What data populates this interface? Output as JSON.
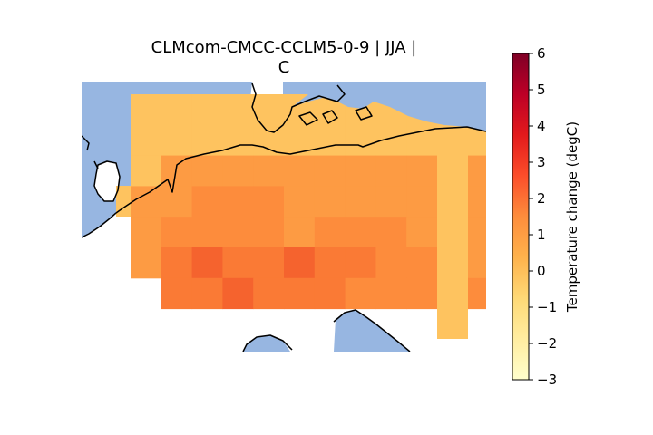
{
  "title": {
    "line1": "CLMcom-CMCC-CCLM5-0-9 | JJA |",
    "line2": "C"
  },
  "colorbar": {
    "label": "Temperature change (degC)",
    "min": -3,
    "max": 6,
    "ticks": [
      "6",
      "5",
      "4",
      "3",
      "2",
      "1",
      "0",
      "−1",
      "−2",
      "−3"
    ],
    "colormap": "YlOrRd"
  },
  "colors": {
    "sea": "#97b6e1",
    "coast": "#000000",
    "cell_0_5": "#fec35f",
    "cell_1_0": "#fd9b43",
    "cell_1_5": "#fd8c3c",
    "cell_2_0": "#fa7a35",
    "cell_2_5": "#f5632e"
  },
  "chart_data": {
    "type": "heatmap",
    "variable": "Temperature change",
    "units": "degC",
    "season": "JJA",
    "model": "CLMcom-CMCC-CCLM5-0-9",
    "value_range": [
      -3,
      6
    ],
    "grid": [
      [
        0.5,
        0.5,
        0.5,
        0.5,
        0.5,
        0.5,
        0.5,
        0.5,
        0.5,
        0.5,
        0.5,
        0.5,
        0.5
      ],
      [
        0.5,
        0.5,
        0.5,
        0.5,
        0.5,
        0.5,
        0.5,
        0.5,
        0.5,
        0.5,
        0.5,
        0.5,
        0.5
      ],
      [
        0.5,
        1.0,
        1.0,
        1.0,
        1.0,
        1.0,
        1.0,
        1.0,
        1.0,
        1.0,
        1.0,
        1.0,
        0.5
      ],
      [
        1.0,
        1.0,
        1.5,
        1.5,
        1.5,
        1.0,
        1.0,
        1.0,
        1.0,
        1.0,
        1.0,
        1.0,
        0.5
      ],
      [
        1.0,
        1.5,
        1.5,
        1.5,
        1.5,
        1.0,
        1.5,
        1.5,
        1.5,
        1.0,
        1.0,
        1.0,
        0.5
      ],
      [
        1.0,
        2.0,
        2.5,
        2.0,
        2.0,
        2.5,
        2.0,
        2.0,
        1.5,
        1.5,
        1.0,
        1.0,
        0.5
      ],
      [
        null,
        2.0,
        2.0,
        2.5,
        2.0,
        2.0,
        2.0,
        1.5,
        1.5,
        1.5,
        1.5,
        1.5,
        0.5
      ]
    ]
  }
}
